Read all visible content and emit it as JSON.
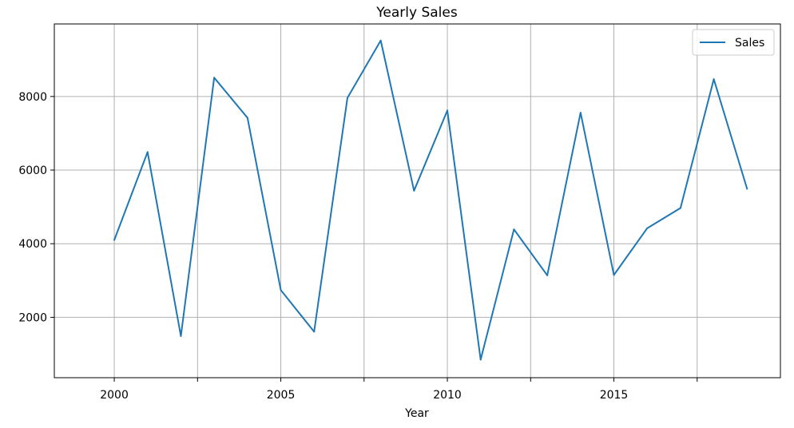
{
  "chart_data": {
    "type": "line",
    "title": "Yearly Sales",
    "xlabel": "Year",
    "ylabel": "",
    "x": [
      2000,
      2001,
      2002,
      2003,
      2004,
      2005,
      2006,
      2007,
      2008,
      2009,
      2010,
      2011,
      2012,
      2013,
      2014,
      2015,
      2016,
      2017,
      2018,
      2019
    ],
    "series": [
      {
        "name": "Sales",
        "color": "#1f77b4",
        "values": [
          4100,
          6490,
          1490,
          8510,
          7420,
          2740,
          1610,
          7960,
          9520,
          5440,
          7620,
          850,
          4390,
          3140,
          7560,
          3150,
          4420,
          4970,
          8470,
          5490
        ]
      }
    ],
    "xlim": [
      1998.2,
      2020.0
    ],
    "ylim": [
      360,
      9970
    ],
    "x_ticks": [
      2000,
      2005,
      2010,
      2015
    ],
    "x_tick_labels": [
      "2000",
      "2005",
      "2010",
      "2015"
    ],
    "x_grid_minor": [
      2002.5,
      2007.5,
      2012.5,
      2017.5
    ],
    "y_ticks": [
      2000,
      4000,
      6000,
      8000
    ],
    "y_tick_labels": [
      "2000",
      "4000",
      "6000",
      "8000"
    ],
    "grid": true,
    "legend_position": "top-right"
  }
}
